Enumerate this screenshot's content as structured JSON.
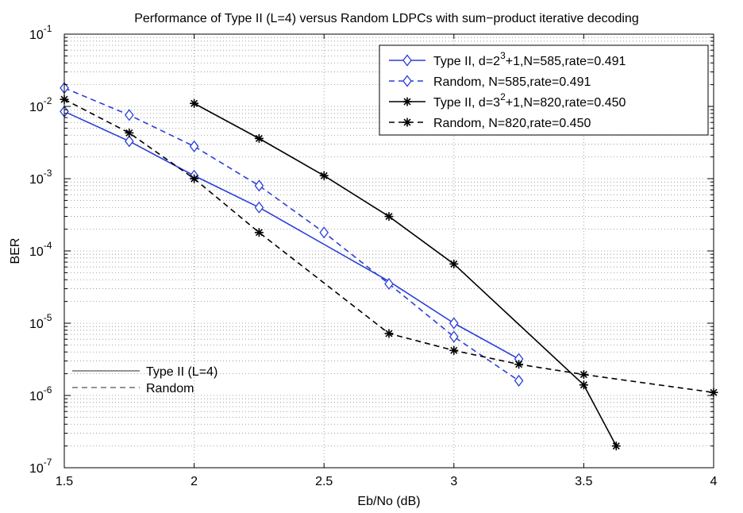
{
  "chart_data": {
    "type": "line",
    "title": "Performance of Type II (L=4) versus Random LDPCs with sum−product iterative decoding",
    "xlabel": "Eb/No (dB)",
    "ylabel": "BER",
    "xlim": [
      1.5,
      4
    ],
    "ylim_log10": [
      -7,
      -1
    ],
    "x_ticks": [
      "1.5",
      "2",
      "2.5",
      "3",
      "3.5",
      "4"
    ],
    "y_ticks": [
      {
        "base": "10",
        "exp": "-1"
      },
      {
        "base": "10",
        "exp": "-2"
      },
      {
        "base": "10",
        "exp": "-3"
      },
      {
        "base": "10",
        "exp": "-4"
      },
      {
        "base": "10",
        "exp": "-5"
      },
      {
        "base": "10",
        "exp": "-6"
      },
      {
        "base": "10",
        "exp": "-7"
      }
    ],
    "grid": true,
    "series": [
      {
        "name": "Type II, d=2^3+1,N=585,rate=0.491",
        "label_parts": [
          "Type II, d=2",
          "3",
          "+1,N=585,rate=0.491"
        ],
        "color": "#2a3fd8",
        "dash": "solid",
        "marker": "diamond",
        "x": [
          1.5,
          1.75,
          2.0,
          2.25,
          3.0,
          3.25
        ],
        "y": [
          0.0085,
          0.0033,
          0.0011,
          0.0004,
          1e-05,
          3.2e-06
        ],
        "line_x": [
          1.5,
          1.75,
          2.0,
          2.25,
          2.75,
          3.0,
          3.25
        ],
        "line_y": [
          0.0085,
          0.0033,
          0.0011,
          0.0004,
          3.8e-05,
          1e-05,
          3.2e-06
        ]
      },
      {
        "name": "Random, N=585,rate=0.491",
        "label_parts": [
          "Random, N=585,rate=0.491",
          "",
          ""
        ],
        "color": "#2a3fd8",
        "dash": "dashed",
        "marker": "diamond",
        "x": [
          1.5,
          1.75,
          2.0,
          2.25,
          2.5,
          2.75,
          3.0,
          3.25
        ],
        "y": [
          0.018,
          0.0076,
          0.0028,
          0.0008,
          0.00018,
          3.5e-05,
          6.5e-06,
          1.6e-06
        ]
      },
      {
        "name": "Type II, d=3^2+1,N=820,rate=0.450",
        "label_parts": [
          "Type II, d=3",
          "2",
          "+1,N=820,rate=0.450"
        ],
        "color": "#000000",
        "dash": "solid",
        "marker": "star",
        "x": [
          2.0,
          2.25,
          2.5,
          2.75,
          3.0,
          3.5,
          3.625
        ],
        "y": [
          0.011,
          0.0036,
          0.0011,
          0.0003,
          6.6e-05,
          1.4e-06,
          2e-07
        ]
      },
      {
        "name": "Random, N=820,rate=0.450",
        "label_parts": [
          "Random, N=820,rate=0.450",
          "",
          ""
        ],
        "color": "#000000",
        "dash": "dashed",
        "marker": "star",
        "x": [
          1.5,
          1.75,
          2.0,
          2.25,
          2.75,
          3.0,
          3.25,
          3.5,
          4.0
        ],
        "y": [
          0.0125,
          0.0043,
          0.001,
          0.00018,
          7.2e-06,
          4.2e-06,
          2.7e-06,
          1.95e-06,
          1.1e-06
        ]
      }
    ],
    "legend": {
      "placement": "top-right"
    },
    "annotation_legend": {
      "placement": "lower-left",
      "items": [
        {
          "label": "Type II (L=4)",
          "dash": "solid",
          "color": "#555555"
        },
        {
          "label": "Random",
          "dash": "dashed",
          "color": "#555555"
        }
      ]
    }
  }
}
